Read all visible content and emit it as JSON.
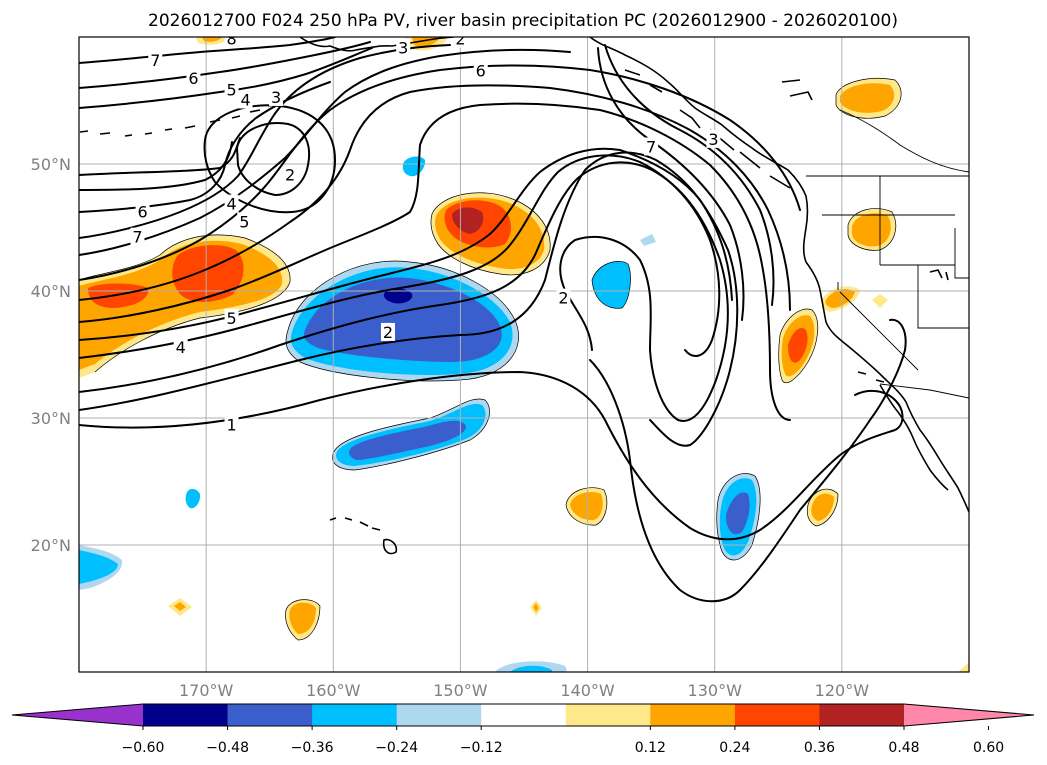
{
  "title": "2026012700 F024 250 hPa PV, river basin precipitation PC (2026012900 - 2026020100)",
  "map": {
    "extent": {
      "lon_min": -180,
      "lon_max": -110,
      "lat_min": 10,
      "lat_max": 60
    },
    "longitude_gridlines": [
      -170,
      -160,
      -150,
      -140,
      -130,
      -120
    ],
    "latitude_gridlines": [
      20,
      30,
      40,
      50
    ],
    "longitude_labels": [
      "170°W",
      "160°W",
      "150°W",
      "140°W",
      "130°W",
      "120°W"
    ],
    "latitude_labels": [
      "20°N",
      "30°N",
      "40°N",
      "50°N"
    ],
    "pv_contour_labels": [
      {
        "text": "7",
        "lon": -174,
        "lat": 58.1
      },
      {
        "text": "6",
        "lon": -171,
        "lat": 56.7
      },
      {
        "text": "5",
        "lon": -168,
        "lat": 55.8
      },
      {
        "text": "4",
        "lon": -166.9,
        "lat": 55.0
      },
      {
        "text": "3",
        "lon": -164.5,
        "lat": 55.2
      },
      {
        "text": "2",
        "lon": -163.4,
        "lat": 49.1
      },
      {
        "text": "6",
        "lon": -175,
        "lat": 46.2
      },
      {
        "text": "4",
        "lon": -168,
        "lat": 46.8
      },
      {
        "text": "5",
        "lon": -167,
        "lat": 45.4
      },
      {
        "text": "7",
        "lon": -175.4,
        "lat": 44.2
      },
      {
        "text": "5",
        "lon": -168,
        "lat": 37.8
      },
      {
        "text": "4",
        "lon": -172,
        "lat": 35.5
      },
      {
        "text": "2",
        "lon": -155.7,
        "lat": 36.7
      },
      {
        "text": "1",
        "lon": -168,
        "lat": 29.4
      },
      {
        "text": "2",
        "lon": -141.9,
        "lat": 39.4
      },
      {
        "text": "6",
        "lon": -148.4,
        "lat": 57.3
      },
      {
        "text": "7",
        "lon": -135,
        "lat": 51.3
      },
      {
        "text": "3",
        "lon": -130.1,
        "lat": 51.9
      },
      {
        "text": "8",
        "lon": -168,
        "lat": 59.8
      },
      {
        "text": "3",
        "lon": -154.5,
        "lat": 59.1
      },
      {
        "text": "2",
        "lon": -150,
        "lat": 59.8
      }
    ]
  },
  "colorbar": {
    "tick_labels": [
      "−0.60",
      "−0.48",
      "−0.36",
      "−0.24",
      "−0.12",
      "0.12",
      "0.24",
      "0.36",
      "0.48",
      "0.60"
    ],
    "colors": [
      "#9932cc",
      "#00008b",
      "#3a5fcd",
      "#00bfff",
      "#add8f0",
      "#ffffff",
      "#ffe88a",
      "#ffa500",
      "#ff4500",
      "#b22222",
      "#ff88aa"
    ],
    "extend": "both"
  }
}
